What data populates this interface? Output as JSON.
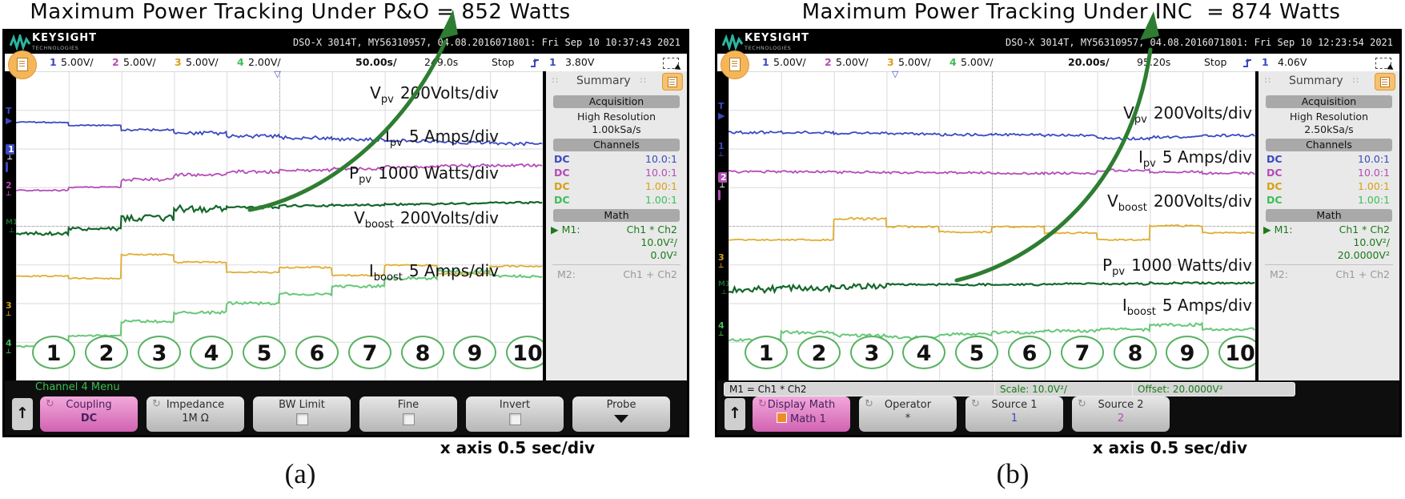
{
  "icons": {
    "cycle": "↻",
    "up": "↑",
    "play": "▶",
    "trig_pos": "▽",
    "ground": "⊥",
    "drag": "∷"
  },
  "circles": [
    "1",
    "2",
    "3",
    "4",
    "5",
    "6",
    "7",
    "8",
    "9",
    "10"
  ],
  "a": {
    "title": "Maximum Power Tracking Under P&O = 852 Watts",
    "caption": "(a)",
    "x_note": "x axis 0.5 sec/div",
    "brand": "KEYSIGHT",
    "brand_sub": "TECHNOLOGIES",
    "model_line": "DSO-X 3014T, MY56310957, 04.08.2016071801: Fri Sep 10 10:37:43 2021",
    "chan": {
      "n1": "1",
      "v1": "5.00V/",
      "n2": "2",
      "v2": "5.00V/",
      "n3": "3",
      "v3": "5.00V/",
      "n4": "4",
      "v4": "2.00V/",
      "tb": "50.00s/",
      "delay": "249.0s",
      "run": "Stop",
      "trig_n": "1",
      "trig_v": "3.80V"
    },
    "markers": [
      "T",
      "1",
      "2",
      "M1",
      "3",
      "4"
    ],
    "trace_labels": [
      {
        "sym": "V",
        "sub": "pv",
        "scale": "200Volts/div"
      },
      {
        "sym": "I",
        "sub": "pv",
        "scale": "5 Amps/div"
      },
      {
        "sym": "P",
        "sub": "pv",
        "scale": "1000 Watts/div"
      },
      {
        "sym": "V",
        "sub": "boost",
        "scale": "200Volts/div"
      },
      {
        "sym": "I",
        "sub": "boost",
        "scale": "5 Amps/div"
      }
    ],
    "sidebar": {
      "title": "Summary",
      "acq_h": "Acquisition",
      "acq1": "High Resolution",
      "acq2": "1.00kSa/s",
      "ch_h": "Channels",
      "rows": [
        {
          "m": "DC",
          "p": "10.0:1"
        },
        {
          "m": "DC",
          "p": "10.0:1"
        },
        {
          "m": "DC",
          "p": "1.00:1"
        },
        {
          "m": "DC",
          "p": "1.00:1"
        }
      ],
      "math_h": "Math",
      "m1": "M1:",
      "m1e": "Ch1 * Ch2",
      "m1s": "10.0V²/",
      "m1o": "0.0V²",
      "m2": "M2:",
      "m2e": "Ch1 + Ch2"
    },
    "menu_title": "Channel 4 Menu",
    "keys": [
      {
        "t": "Coupling",
        "b": "DC"
      },
      {
        "t": "Impedance",
        "b": "1M Ω"
      },
      {
        "t": "BW Limit",
        "b": ""
      },
      {
        "t": "Fine",
        "b": ""
      },
      {
        "t": "Invert",
        "b": ""
      },
      {
        "t": "Probe",
        "b": ""
      }
    ]
  },
  "b": {
    "title": "Maximum Power Tracking Under INC  = 874 Watts",
    "caption": "(b)",
    "x_note": "x axis 0.5 sec/div",
    "brand": "KEYSIGHT",
    "brand_sub": "TECHNOLOGIES",
    "model_line": "DSO-X 3014T, MY56310957, 04.08.2016071801: Fri Sep 10 12:23:54 2021",
    "chan": {
      "n1": "1",
      "v1": "5.00V/",
      "n2": "2",
      "v2": "5.00V/",
      "n3": "3",
      "v3": "5.00V/",
      "n4": "4",
      "v4": "5.00V/",
      "tb": "20.00s/",
      "delay": "95.20s",
      "run": "Stop",
      "trig_n": "1",
      "trig_v": "4.06V"
    },
    "markers": [
      "T",
      "1",
      "2",
      "3",
      "M1",
      "4"
    ],
    "trace_labels": [
      {
        "sym": "V",
        "sub": "pv",
        "scale": "200Volts/div"
      },
      {
        "sym": "I",
        "sub": "pv",
        "scale": "5 Amps/div"
      },
      {
        "sym": "V",
        "sub": "boost",
        "scale": "200Volts/div"
      },
      {
        "sym": "P",
        "sub": "pv",
        "scale": "1000 Watts/div"
      },
      {
        "sym": "I",
        "sub": "boost",
        "scale": "5 Amps/div"
      }
    ],
    "sidebar": {
      "title": "Summary",
      "acq_h": "Acquisition",
      "acq1": "High Resolution",
      "acq2": "2.50kSa/s",
      "ch_h": "Channels",
      "rows": [
        {
          "m": "DC",
          "p": "10.0:1"
        },
        {
          "m": "DC",
          "p": "10.0:1"
        },
        {
          "m": "DC",
          "p": "1.00:1"
        },
        {
          "m": "DC",
          "p": "1.00:1"
        }
      ],
      "math_h": "Math",
      "m1": "M1:",
      "m1e": "Ch1 * Ch2",
      "m1s": "10.0V²/",
      "m1o": "20.0000V²",
      "m2": "M2:",
      "m2e": "Ch1 + Ch2"
    },
    "status": [
      "M1 = Ch1 * Ch2",
      "Scale: 10.0V²/",
      "Offset: 20.0000V²"
    ],
    "keys": [
      {
        "t": "Display Math",
        "b": "Math 1"
      },
      {
        "t": "Operator",
        "b": "*"
      },
      {
        "t": "Source 1",
        "b": "1"
      },
      {
        "t": "Source 2",
        "b": "2"
      }
    ]
  },
  "chart_data": [
    {
      "type": "line",
      "title": "Maximum Power Tracking Under P&O = 852 Watts",
      "tracked_power_watts": 852,
      "x": {
        "segments": 10,
        "annotation": "x axis 0.5 sec/div",
        "timebase_readout": "50.00s/",
        "delay_readout": "249.0s"
      },
      "y": {
        "divisions": 8,
        "note": "levels are graticule divisions measured from top of screen"
      },
      "legend_position": "labels inside plot, right side",
      "grid": true,
      "series": [
        {
          "name": "Vboost",
          "scale": "200 Volts/div",
          "color": "#e0ae34",
          "width": 1.8,
          "seed": 4,
          "levels": [
            5.3,
            5.36,
            4.74,
            4.94,
            5.2,
            5.08,
            5.28,
            5.02,
            5.24,
            5.04
          ],
          "noise": [
            0.8,
            0.8,
            1.0,
            1.0,
            1.0,
            1.0,
            1.0,
            1.0,
            1.0,
            1.0
          ]
        },
        {
          "name": "Iboost",
          "scale": "5 Amps/div",
          "color": "#67c877",
          "width": 2.0,
          "seed": 5,
          "levels": [
            7.12,
            6.84,
            6.48,
            6.24,
            6.0,
            5.76,
            5.56,
            5.36,
            5.18,
            5.3
          ],
          "noise": [
            1.0,
            1.0,
            2.0,
            2.0,
            1.8,
            1.8,
            1.8,
            1.8,
            2.0,
            1.8
          ]
        },
        {
          "name": "Vpv",
          "scale": "200 Volts/div",
          "color": "#3a49c0",
          "width": 1.8,
          "seed": 1,
          "levels": [
            1.32,
            1.4,
            1.52,
            1.6,
            1.68,
            1.72,
            1.76,
            1.8,
            1.84,
            1.88
          ],
          "noise": [
            0.7,
            0.7,
            1.4,
            2.2,
            2.2,
            2.2,
            2.2,
            2.2,
            2.2,
            2.2
          ]
        },
        {
          "name": "Ipv",
          "scale": "5 Amps/div",
          "color": "#b44cb8",
          "width": 1.8,
          "seed": 2,
          "levels": [
            3.08,
            3.0,
            2.8,
            2.68,
            2.6,
            2.56,
            2.52,
            2.48,
            2.44,
            2.44
          ],
          "noise": [
            0.7,
            0.7,
            2.0,
            2.0,
            2.0,
            1.8,
            1.8,
            1.8,
            1.8,
            1.8
          ]
        },
        {
          "name": "Ppv",
          "scale": "1000 Watts/div",
          "color": "#15672b",
          "width": 2.2,
          "seed": 3,
          "levels": [
            4.2,
            4.08,
            3.8,
            3.56,
            3.52,
            3.48,
            3.46,
            3.44,
            3.42,
            3.4
          ],
          "noise": [
            2.2,
            2.2,
            4.2,
            4.2,
            1.8,
            1.2,
            1.2,
            1.2,
            1.2,
            1.2
          ]
        }
      ]
    },
    {
      "type": "line",
      "title": "Maximum Power Tracking Under INC = 874 Watts",
      "tracked_power_watts": 874,
      "x": {
        "segments": 10,
        "annotation": "x axis 0.5 sec/div",
        "timebase_readout": "20.00s/",
        "delay_readout": "95.20s"
      },
      "y": {
        "divisions": 8,
        "note": "levels are graticule divisions measured from top of screen"
      },
      "legend_position": "labels inside plot, right side",
      "grid": true,
      "series": [
        {
          "name": "Vboost",
          "scale": "200 Volts/div",
          "color": "#e0ae34",
          "width": 1.8,
          "seed": 9,
          "levels": [
            4.36,
            4.36,
            3.82,
            4.02,
            4.16,
            4.02,
            4.18,
            4.36,
            4.0,
            4.18
          ],
          "noise": [
            0.8,
            0.8,
            1.6,
            1.2,
            1.0,
            1.0,
            1.0,
            0.8,
            1.0,
            1.0
          ]
        },
        {
          "name": "Iboost",
          "scale": "5 Amps/div",
          "color": "#67c877",
          "width": 2.0,
          "seed": 10,
          "levels": [
            6.96,
            6.76,
            6.84,
            6.88,
            6.8,
            6.76,
            6.72,
            6.68,
            6.56,
            6.68
          ],
          "noise": [
            1.8,
            2.0,
            1.8,
            1.8,
            1.8,
            1.8,
            1.8,
            1.8,
            2.0,
            1.8
          ]
        },
        {
          "name": "Vpv",
          "scale": "200 Volts/div",
          "color": "#3a49c0",
          "width": 1.8,
          "seed": 6,
          "levels": [
            1.58,
            1.58,
            1.6,
            1.62,
            1.64,
            1.64,
            1.66,
            1.74,
            1.7,
            1.66
          ],
          "noise": [
            1.6,
            1.6,
            1.6,
            1.6,
            1.6,
            1.6,
            1.6,
            1.6,
            1.6,
            1.6
          ]
        },
        {
          "name": "Ipv",
          "scale": "5 Amps/div",
          "color": "#b44cb8",
          "width": 1.8,
          "seed": 7,
          "levels": [
            2.6,
            2.6,
            2.61,
            2.62,
            2.62,
            2.64,
            2.64,
            2.56,
            2.6,
            2.64
          ],
          "noise": [
            1.4,
            1.4,
            1.4,
            1.4,
            1.4,
            1.4,
            1.4,
            1.4,
            1.4,
            1.4
          ]
        },
        {
          "name": "Ppv",
          "scale": "1000 Watts/div",
          "color": "#15672b",
          "width": 2.2,
          "seed": 8,
          "levels": [
            5.64,
            5.6,
            5.56,
            5.52,
            5.52,
            5.52,
            5.5,
            5.5,
            5.48,
            5.48
          ],
          "noise": [
            4.2,
            4.2,
            3.6,
            1.2,
            1.2,
            1.2,
            1.2,
            1.2,
            1.2,
            1.2
          ]
        }
      ]
    }
  ]
}
